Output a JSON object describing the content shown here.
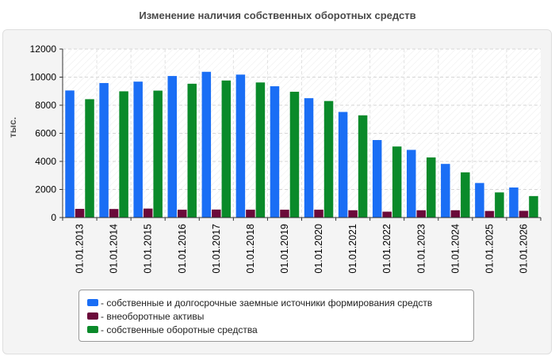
{
  "chart_data": {
    "type": "bar",
    "title": "Изменение наличия собственных оборотных средств",
    "ylabel": "тыс.",
    "xlabel": "",
    "ylim": [
      0,
      12000
    ],
    "yticks": [
      0,
      2000,
      4000,
      6000,
      8000,
      10000,
      12000
    ],
    "grid": true,
    "legend_position": "bottom",
    "categories": [
      "01.01.2013",
      "01.01.2014",
      "01.01.2015",
      "01.01.2016",
      "01.01.2017",
      "01.01.2018",
      "01.01.2019",
      "01.01.2020",
      "01.01.2021",
      "01.01.2022",
      "01.01.2023",
      "01.01.2024",
      "01.01.2025",
      "01.01.2026"
    ],
    "series": [
      {
        "name": "- собственные и долгосрочные заемные источники формирования средств",
        "color": "#1a6ef5",
        "values": [
          9050,
          9580,
          9680,
          10080,
          10380,
          10180,
          9350,
          8500,
          7520,
          5520,
          4820,
          3820,
          2460,
          2140
        ]
      },
      {
        "name": "- внеоборотные активы",
        "color": "#6b0a3a",
        "values": [
          620,
          610,
          640,
          560,
          570,
          560,
          560,
          560,
          520,
          420,
          520,
          520,
          470,
          480
        ]
      },
      {
        "name": "- собственные оборотные средства",
        "color": "#0a8a2a",
        "values": [
          8430,
          8990,
          9040,
          9530,
          9760,
          9620,
          8960,
          8300,
          7280,
          5060,
          4280,
          3220,
          1790,
          1530
        ]
      }
    ]
  }
}
